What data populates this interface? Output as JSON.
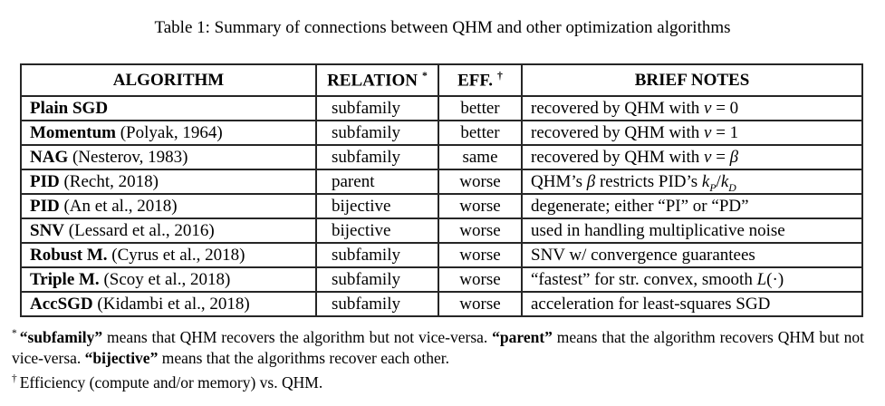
{
  "caption": "Table 1: Summary of connections between QHM and other optimization algorithms",
  "table": {
    "headers": [
      {
        "key": "algorithm",
        "label": "ALGORITHM",
        "mark": ""
      },
      {
        "key": "relation",
        "label": "RELATION",
        "mark": "*"
      },
      {
        "key": "eff",
        "label": "EFF.",
        "mark": "†"
      },
      {
        "key": "brief-notes",
        "label": "BRIEF NOTES",
        "mark": ""
      }
    ],
    "rows": [
      {
        "name": [
          {
            "t": "Plain SGD",
            "b": true
          }
        ],
        "relation": "subfamily",
        "eff": "better",
        "notes": [
          {
            "t": "recovered by QHM with "
          },
          {
            "t": "ν",
            "i": true
          },
          {
            "t": " = 0"
          }
        ]
      },
      {
        "name": [
          {
            "t": "Momentum",
            "b": true
          },
          {
            "t": " (Polyak, 1964)"
          }
        ],
        "relation": "subfamily",
        "eff": "better",
        "notes": [
          {
            "t": "recovered by QHM with "
          },
          {
            "t": "ν",
            "i": true
          },
          {
            "t": " = 1"
          }
        ]
      },
      {
        "name": [
          {
            "t": "NAG",
            "b": true
          },
          {
            "t": " (Nesterov, 1983)"
          }
        ],
        "relation": "subfamily",
        "eff": "same",
        "notes": [
          {
            "t": "recovered by QHM with "
          },
          {
            "t": "ν",
            "i": true
          },
          {
            "t": " = "
          },
          {
            "t": "β",
            "i": true
          }
        ]
      },
      {
        "name": [
          {
            "t": "PID",
            "b": true
          },
          {
            "t": " (Recht, 2018)"
          }
        ],
        "relation": "parent",
        "eff": "worse",
        "notes": [
          {
            "t": "QHM’s "
          },
          {
            "t": "β",
            "i": true
          },
          {
            "t": " restricts PID’s "
          },
          {
            "t": "k",
            "i": true
          },
          {
            "t": "P",
            "i": true,
            "sub": true
          },
          {
            "t": "/"
          },
          {
            "t": "k",
            "i": true
          },
          {
            "t": "D",
            "i": true,
            "sub": true
          }
        ]
      },
      {
        "name": [
          {
            "t": "PID",
            "b": true
          },
          {
            "t": " (An et al., 2018)"
          }
        ],
        "relation": "bijective",
        "eff": "worse",
        "notes": [
          {
            "t": "degenerate; either “PI” or “PD”"
          }
        ]
      },
      {
        "name": [
          {
            "t": "SNV",
            "b": true
          },
          {
            "t": " (Lessard et al., 2016)"
          }
        ],
        "relation": "bijective",
        "eff": "worse",
        "notes": [
          {
            "t": "used in handling multiplicative noise"
          }
        ]
      },
      {
        "name": [
          {
            "t": "Robust M.",
            "b": true
          },
          {
            "t": " (Cyrus et al., 2018)"
          }
        ],
        "relation": "subfamily",
        "eff": "worse",
        "notes": [
          {
            "t": "SNV w/ convergence guarantees"
          }
        ]
      },
      {
        "name": [
          {
            "t": "Triple M.",
            "b": true
          },
          {
            "t": " (Scoy et al., 2018)"
          }
        ],
        "relation": "subfamily",
        "eff": "worse",
        "notes": [
          {
            "t": "“fastest” for str. convex, smooth "
          },
          {
            "t": "L",
            "i": true
          },
          {
            "t": "(·)"
          }
        ]
      },
      {
        "name": [
          {
            "t": "AccSGD",
            "b": true
          },
          {
            "t": " (Kidambi et al., 2018)"
          }
        ],
        "relation": "subfamily",
        "eff": "worse",
        "notes": [
          {
            "t": "acceleration for least-squares SGD"
          }
        ]
      }
    ]
  },
  "footnotes": [
    {
      "mark": "*",
      "segments": [
        {
          "t": "“subfamily”",
          "b": true
        },
        {
          "t": " means that QHM recovers the algorithm but not vice-versa. "
        },
        {
          "t": "“parent”",
          "b": true
        },
        {
          "t": " means that the algorithm recovers QHM but not vice-versa. "
        },
        {
          "t": "“bijective”",
          "b": true
        },
        {
          "t": " means that the algorithms recover each other."
        }
      ]
    },
    {
      "mark": "†",
      "segments": [
        {
          "t": "Efficiency (compute and/or memory) vs. QHM."
        }
      ]
    }
  ]
}
